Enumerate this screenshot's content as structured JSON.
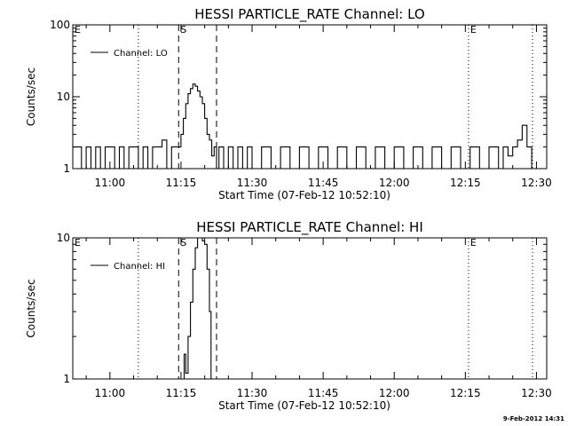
{
  "stamp": "9-Feb-2012 14:31",
  "chart_data": [
    {
      "type": "line",
      "title": "HESSI PARTICLE_RATE Channel: LO",
      "xlabel": "Start Time (07-Feb-12 10:52:10)",
      "ylabel": "Counts/sec",
      "yscale": "log",
      "ylim": [
        1,
        100
      ],
      "xlim": [
        "10:52:10",
        "12:32:10"
      ],
      "x_tick_labels": [
        "11:00",
        "11:15",
        "11:30",
        "11:45",
        "12:00",
        "12:15",
        "12:30"
      ],
      "y_tick_labels": [
        "1",
        "10",
        "100"
      ],
      "legend": {
        "label": "Channel: LO",
        "position": "top-left"
      },
      "markers": [
        {
          "label": "E",
          "time": "10:52:10",
          "style": "dotted"
        },
        {
          "time": "11:06:00",
          "style": "dotted"
        },
        {
          "label": "S",
          "time": "11:14:30",
          "style": "dashed"
        },
        {
          "time": "11:22:30",
          "style": "dashed"
        },
        {
          "label": "E",
          "time": "12:15:40",
          "style": "dotted"
        },
        {
          "time": "12:29:10",
          "style": "dotted"
        }
      ],
      "series": [
        {
          "name": "Channel: LO",
          "x": [
            "10:52:10",
            "10:54:00",
            "10:55:00",
            "10:56:00",
            "10:57:00",
            "10:58:00",
            "10:59:00",
            "11:00:00",
            "11:01:00",
            "11:02:00",
            "11:03:00",
            "11:04:00",
            "11:05:00",
            "11:06:00",
            "11:07:00",
            "11:08:00",
            "11:09:00",
            "11:10:00",
            "11:11:00",
            "11:12:00",
            "11:13:00",
            "11:14:00",
            "11:15:00",
            "11:15:30",
            "11:16:00",
            "11:16:30",
            "11:17:00",
            "11:17:30",
            "11:18:00",
            "11:18:30",
            "11:19:00",
            "11:19:30",
            "11:20:00",
            "11:20:30",
            "11:21:00",
            "11:21:30",
            "11:22:00",
            "11:22:30",
            "11:23:00",
            "11:24:00",
            "11:25:00",
            "11:26:00",
            "11:27:00",
            "11:28:00",
            "11:29:00",
            "11:30:00",
            "11:32:00",
            "11:34:00",
            "11:36:00",
            "11:38:00",
            "11:40:00",
            "11:42:00",
            "11:44:00",
            "11:46:00",
            "11:48:00",
            "11:50:00",
            "11:52:00",
            "11:54:00",
            "11:56:00",
            "11:58:00",
            "12:00:00",
            "12:02:00",
            "12:04:00",
            "12:06:00",
            "12:08:00",
            "12:10:00",
            "12:12:00",
            "12:14:00",
            "12:16:00",
            "12:18:00",
            "12:20:00",
            "12:22:00",
            "12:23:00",
            "12:24:00",
            "12:25:00",
            "12:26:00",
            "12:27:00",
            "12:28:00",
            "12:29:00"
          ],
          "values": [
            2,
            1,
            2,
            1,
            2,
            1,
            2,
            2,
            1,
            2,
            1,
            2,
            2,
            1,
            2,
            1,
            2,
            2,
            2.5,
            1,
            2,
            2,
            3,
            5,
            8,
            11,
            13,
            15,
            14,
            12,
            10,
            8,
            5,
            3,
            2.5,
            1.5,
            2,
            1,
            2,
            1,
            2,
            1,
            2,
            1,
            2,
            1,
            2,
            1,
            2,
            1,
            2,
            1,
            2,
            1,
            2,
            1,
            2,
            1,
            2,
            1,
            2,
            1,
            2,
            1,
            2,
            1,
            2,
            1,
            2,
            1,
            2,
            1,
            2,
            1.5,
            2,
            2.5,
            4,
            2,
            1
          ]
        }
      ]
    },
    {
      "type": "line",
      "title": "HESSI PARTICLE_RATE Channel: HI",
      "xlabel": "Start Time (07-Feb-12 10:52:10)",
      "ylabel": "Counts/sec",
      "yscale": "log",
      "ylim": [
        1,
        10
      ],
      "xlim": [
        "10:52:10",
        "12:32:10"
      ],
      "x_tick_labels": [
        "11:00",
        "11:15",
        "11:30",
        "11:45",
        "12:00",
        "12:15",
        "12:30"
      ],
      "y_tick_labels": [
        "1",
        "10"
      ],
      "legend": {
        "label": "Channel: HI",
        "position": "top-left"
      },
      "markers": [
        {
          "label": "E",
          "time": "10:52:10",
          "style": "dotted"
        },
        {
          "time": "11:06:00",
          "style": "dotted"
        },
        {
          "label": "S",
          "time": "11:14:30",
          "style": "dashed"
        },
        {
          "time": "11:22:30",
          "style": "dashed"
        },
        {
          "label": "E",
          "time": "12:15:40",
          "style": "dotted"
        },
        {
          "time": "12:29:10",
          "style": "dotted"
        }
      ],
      "series": [
        {
          "name": "Channel: HI",
          "x": [
            "11:15:00",
            "11:15:40",
            "11:16:00",
            "11:16:30",
            "11:17:00",
            "11:17:30",
            "11:18:00",
            "11:18:30",
            "11:19:00",
            "11:19:30",
            "11:20:00",
            "11:20:30",
            "11:21:00",
            "11:21:20"
          ],
          "values": [
            1,
            1.5,
            1.1,
            2,
            3.5,
            6,
            8.5,
            10,
            10,
            9.5,
            9,
            6,
            3,
            1
          ]
        }
      ]
    }
  ]
}
